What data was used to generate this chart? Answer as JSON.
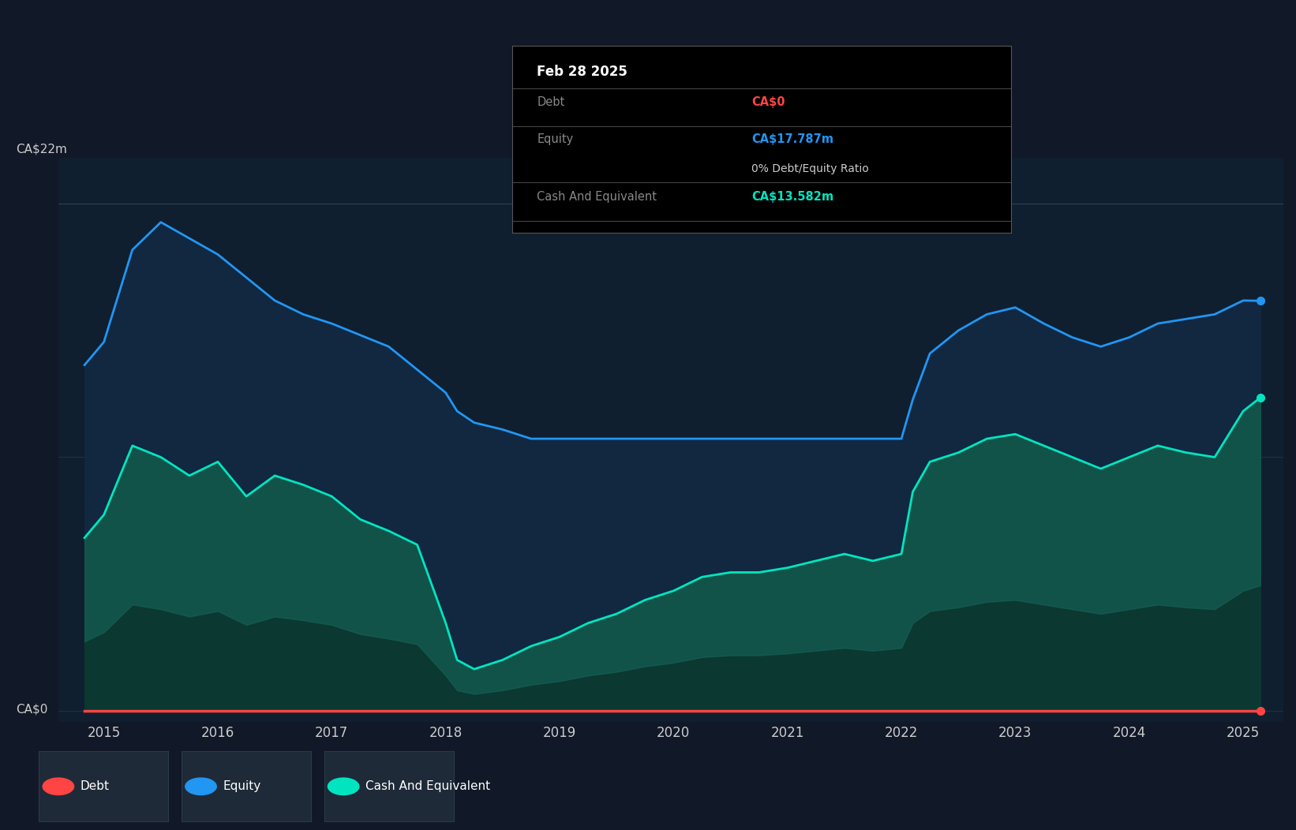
{
  "background_color": "#111827",
  "plot_bg_color": "#0f1f30",
  "ylabel_top": "CA$22m",
  "ylabel_bottom": "CA$0",
  "x_ticks": [
    2015,
    2016,
    2017,
    2018,
    2019,
    2020,
    2021,
    2022,
    2023,
    2024,
    2025
  ],
  "x_min": 2014.6,
  "x_max": 2025.35,
  "y_min": -0.5,
  "y_max": 24,
  "y_top_line": 22,
  "y_mid_line": 11,
  "equity_color": "#2196f3",
  "cash_color": "#00e5c0",
  "debt_color": "#ff4444",
  "equity_fill": "#112840",
  "cash_fill": "#0d4a44",
  "grid_color": "#2a3a4a",
  "tooltip_bg": "#000000",
  "tooltip_border": "#333333",
  "legend_bg": "#1e2a38",
  "dates": [
    2014.83,
    2015.0,
    2015.25,
    2015.5,
    2015.75,
    2016.0,
    2016.25,
    2016.5,
    2016.75,
    2017.0,
    2017.25,
    2017.5,
    2017.75,
    2018.0,
    2018.1,
    2018.25,
    2018.5,
    2018.75,
    2019.0,
    2019.25,
    2019.5,
    2019.75,
    2020.0,
    2020.25,
    2020.5,
    2020.75,
    2021.0,
    2021.25,
    2021.5,
    2021.75,
    2022.0,
    2022.1,
    2022.25,
    2022.5,
    2022.75,
    2023.0,
    2023.25,
    2023.5,
    2023.75,
    2024.0,
    2024.25,
    2024.5,
    2024.75,
    2025.0,
    2025.15
  ],
  "equity": [
    15.0,
    16.0,
    20.0,
    21.2,
    20.5,
    19.8,
    18.8,
    17.8,
    17.2,
    16.8,
    16.3,
    15.8,
    14.8,
    13.8,
    13.0,
    12.5,
    12.2,
    11.8,
    11.8,
    11.8,
    11.8,
    11.8,
    11.8,
    11.8,
    11.8,
    11.8,
    11.8,
    11.8,
    11.8,
    11.8,
    11.8,
    13.5,
    15.5,
    16.5,
    17.2,
    17.5,
    16.8,
    16.2,
    15.8,
    16.2,
    16.8,
    17.0,
    17.2,
    17.8,
    17.787
  ],
  "cash": [
    7.5,
    8.5,
    11.5,
    11.0,
    10.2,
    10.8,
    9.3,
    10.2,
    9.8,
    9.3,
    8.3,
    7.8,
    7.2,
    3.8,
    2.2,
    1.8,
    2.2,
    2.8,
    3.2,
    3.8,
    4.2,
    4.8,
    5.2,
    5.8,
    6.0,
    6.0,
    6.2,
    6.5,
    6.8,
    6.5,
    6.8,
    9.5,
    10.8,
    11.2,
    11.8,
    12.0,
    11.5,
    11.0,
    10.5,
    11.0,
    11.5,
    11.2,
    11.0,
    13.0,
    13.582
  ],
  "debt": [
    0,
    0,
    0,
    0,
    0,
    0,
    0,
    0,
    0,
    0,
    0,
    0,
    0,
    0,
    0,
    0,
    0,
    0,
    0,
    0,
    0,
    0,
    0,
    0,
    0,
    0,
    0,
    0,
    0,
    0,
    0,
    0,
    0,
    0,
    0,
    0,
    0,
    0,
    0,
    0,
    0,
    0,
    0,
    0,
    0
  ],
  "tooltip_date": "Feb 28 2025",
  "tooltip_debt_label": "Debt",
  "tooltip_debt_value": "CA$0",
  "tooltip_debt_color": "#ff4444",
  "tooltip_equity_label": "Equity",
  "tooltip_equity_value": "CA$17.787m",
  "tooltip_equity_color": "#2196f3",
  "tooltip_ratio": "0% Debt/Equity Ratio",
  "tooltip_cash_label": "Cash And Equivalent",
  "tooltip_cash_value": "CA$13.582m",
  "tooltip_cash_color": "#00e5c0",
  "legend_items": [
    {
      "label": "Debt",
      "color": "#ff4444"
    },
    {
      "label": "Equity",
      "color": "#2196f3"
    },
    {
      "label": "Cash And Equivalent",
      "color": "#00e5c0"
    }
  ]
}
